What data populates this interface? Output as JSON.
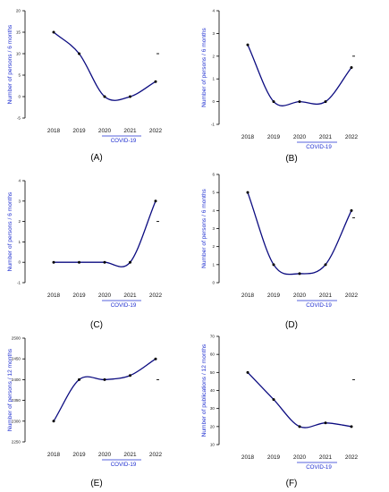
{
  "panels": [
    {
      "letter": "(A)",
      "ylabel": "Number of persons / 6 months",
      "ylim": [
        -5,
        20
      ],
      "yticks": [
        -5,
        0,
        5,
        10,
        15,
        20
      ],
      "marker_value": 10
    },
    {
      "letter": "(B)",
      "ylabel": "Number of persons / 6 months",
      "ylim": [
        -1,
        4
      ],
      "yticks": [
        -1,
        0,
        1,
        2,
        3,
        4
      ],
      "marker_value": 2
    },
    {
      "letter": "(C)",
      "ylabel": "Number of persons / 6 months",
      "ylim": [
        -1,
        4
      ],
      "yticks": [
        -1,
        0,
        1,
        2,
        3,
        4
      ],
      "marker_value": 2
    },
    {
      "letter": "(D)",
      "ylabel": "Number of persons / 6 months",
      "ylim": [
        0,
        6
      ],
      "yticks": [
        0,
        1,
        2,
        3,
        4,
        5,
        6
      ],
      "marker_value": 3.6
    },
    {
      "letter": "(E)",
      "ylabel": "Number of persons / 12 months",
      "ylim": [
        2250,
        2500
      ],
      "yticks": [
        2250,
        2300,
        2350,
        2400,
        2450,
        2500
      ],
      "marker_value": 2400
    },
    {
      "letter": "(F)",
      "ylabel": "Number of publications / 12 months",
      "ylim": [
        10,
        70
      ],
      "yticks": [
        10,
        20,
        30,
        40,
        50,
        60,
        70
      ],
      "marker_value": 46
    }
  ],
  "covid_label": "COVID-19",
  "chart_data": [
    {
      "type": "line",
      "x": [
        2018,
        2019,
        2020,
        2021,
        2022
      ],
      "xticks": [
        "2018",
        "2019",
        "2020",
        "2021",
        "2022"
      ],
      "y": [
        15,
        10,
        0,
        0,
        3.5
      ],
      "ylim": [
        -5,
        20
      ],
      "ylabel": "Number of persons / 6 months",
      "smooth": true,
      "annotation": "COVID-19"
    },
    {
      "type": "line",
      "x": [
        2018,
        2019,
        2020,
        2021,
        2022
      ],
      "xticks": [
        "2018",
        "2019",
        "2020",
        "2021",
        "2022"
      ],
      "y": [
        2.5,
        0,
        0,
        0,
        1.5
      ],
      "ylim": [
        -1,
        4
      ],
      "ylabel": "Number of persons / 6 months",
      "smooth": true,
      "annotation": "COVID-19"
    },
    {
      "type": "line",
      "x": [
        2018,
        2019,
        2020,
        2021,
        2022
      ],
      "xticks": [
        "2018",
        "2019",
        "2020",
        "2021",
        "2022"
      ],
      "y": [
        0,
        0,
        0,
        0,
        3
      ],
      "ylim": [
        -1,
        4
      ],
      "ylabel": "Number of persons / 6 months",
      "smooth": true,
      "annotation": "COVID-19"
    },
    {
      "type": "line",
      "x": [
        2018,
        2019,
        2020,
        2021,
        2022
      ],
      "xticks": [
        "2018",
        "2019",
        "2020",
        "2021",
        "2022"
      ],
      "y": [
        5,
        1,
        0.5,
        1,
        4
      ],
      "ylim": [
        0,
        6
      ],
      "ylabel": "Number of persons / 6 months",
      "smooth": true,
      "annotation": "COVID-19"
    },
    {
      "type": "line",
      "x": [
        2018,
        2019,
        2020,
        2021,
        2022
      ],
      "xticks": [
        "2018",
        "2019",
        "2020",
        "2021",
        "2022"
      ],
      "y": [
        2300,
        2400,
        2400,
        2410,
        2450
      ],
      "ylim": [
        2250,
        2500
      ],
      "ylabel": "Number of persons / 12 months",
      "smooth": true,
      "annotation": "COVID-19"
    },
    {
      "type": "line",
      "x": [
        2018,
        2019,
        2020,
        2021,
        2022
      ],
      "xticks": [
        "2018",
        "2019",
        "2020",
        "2021",
        "2022"
      ],
      "y": [
        50,
        35,
        20,
        22,
        20
      ],
      "ylim": [
        10,
        70
      ],
      "ylabel": "Number of publications / 12 months",
      "smooth": true,
      "annotation": "COVID-19"
    }
  ],
  "colors": {
    "line": "#0b0b80",
    "ylabel": "#1f2fd0",
    "covid": "#1f2fd0",
    "axis": "#000000",
    "point": "#000000"
  }
}
